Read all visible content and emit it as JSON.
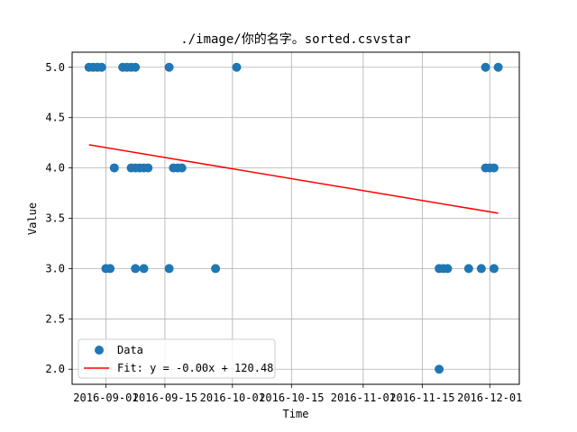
{
  "chart_data": {
    "type": "scatter",
    "title": "./image/你的名字。sorted.csvstar",
    "xlabel": "Time",
    "ylabel": "Value",
    "x_is_date": true,
    "xlim": [
      "2016-08-24",
      "2016-12-08"
    ],
    "ylim": [
      1.85,
      5.15
    ],
    "x_ticks": [
      "2016-09-01",
      "2016-09-15",
      "2016-10-01",
      "2016-10-15",
      "2016-11-01",
      "2016-11-15",
      "2016-12-01"
    ],
    "x_tick_labels": [
      "2016-09-01",
      "2016-09-15",
      "2016-10-01",
      "2016-10-15",
      "2016-11-01",
      "2016-11-15",
      "2016-12-01"
    ],
    "y_ticks": [
      2.0,
      2.5,
      3.0,
      3.5,
      4.0,
      4.5,
      5.0
    ],
    "y_tick_labels": [
      "2.0",
      "2.5",
      "3.0",
      "3.5",
      "4.0",
      "4.5",
      "5.0"
    ],
    "grid": true,
    "legend_position": "lower-left",
    "series": [
      {
        "name": "Data",
        "kind": "scatter",
        "color": "#1f77b4",
        "points": [
          {
            "x": "2016-08-28",
            "y": 5
          },
          {
            "x": "2016-08-29",
            "y": 5
          },
          {
            "x": "2016-08-30",
            "y": 5
          },
          {
            "x": "2016-08-31",
            "y": 5
          },
          {
            "x": "2016-09-01",
            "y": 3
          },
          {
            "x": "2016-09-02",
            "y": 3
          },
          {
            "x": "2016-09-03",
            "y": 4
          },
          {
            "x": "2016-09-05",
            "y": 5
          },
          {
            "x": "2016-09-06",
            "y": 5
          },
          {
            "x": "2016-09-07",
            "y": 4
          },
          {
            "x": "2016-09-07",
            "y": 5
          },
          {
            "x": "2016-09-08",
            "y": 4
          },
          {
            "x": "2016-09-08",
            "y": 3
          },
          {
            "x": "2016-09-08",
            "y": 5
          },
          {
            "x": "2016-09-09",
            "y": 4
          },
          {
            "x": "2016-09-10",
            "y": 4
          },
          {
            "x": "2016-09-10",
            "y": 3
          },
          {
            "x": "2016-09-11",
            "y": 4
          },
          {
            "x": "2016-09-16",
            "y": 3
          },
          {
            "x": "2016-09-16",
            "y": 5
          },
          {
            "x": "2016-09-17",
            "y": 4
          },
          {
            "x": "2016-09-18",
            "y": 4
          },
          {
            "x": "2016-09-19",
            "y": 4
          },
          {
            "x": "2016-09-27",
            "y": 3
          },
          {
            "x": "2016-10-02",
            "y": 5
          },
          {
            "x": "2016-11-19",
            "y": 2
          },
          {
            "x": "2016-11-19",
            "y": 3
          },
          {
            "x": "2016-11-20",
            "y": 3
          },
          {
            "x": "2016-11-21",
            "y": 3
          },
          {
            "x": "2016-11-26",
            "y": 3
          },
          {
            "x": "2016-11-29",
            "y": 3
          },
          {
            "x": "2016-11-30",
            "y": 5
          },
          {
            "x": "2016-11-30",
            "y": 4
          },
          {
            "x": "2016-12-01",
            "y": 4
          },
          {
            "x": "2016-12-02",
            "y": 4
          },
          {
            "x": "2016-12-02",
            "y": 3
          },
          {
            "x": "2016-12-03",
            "y": 5
          }
        ]
      },
      {
        "name": "Fit: y = -0.00x + 120.48",
        "kind": "line",
        "color": "#ff0000",
        "points": [
          {
            "x": "2016-08-28",
            "y": 4.23
          },
          {
            "x": "2016-12-03",
            "y": 3.55
          }
        ]
      }
    ]
  }
}
